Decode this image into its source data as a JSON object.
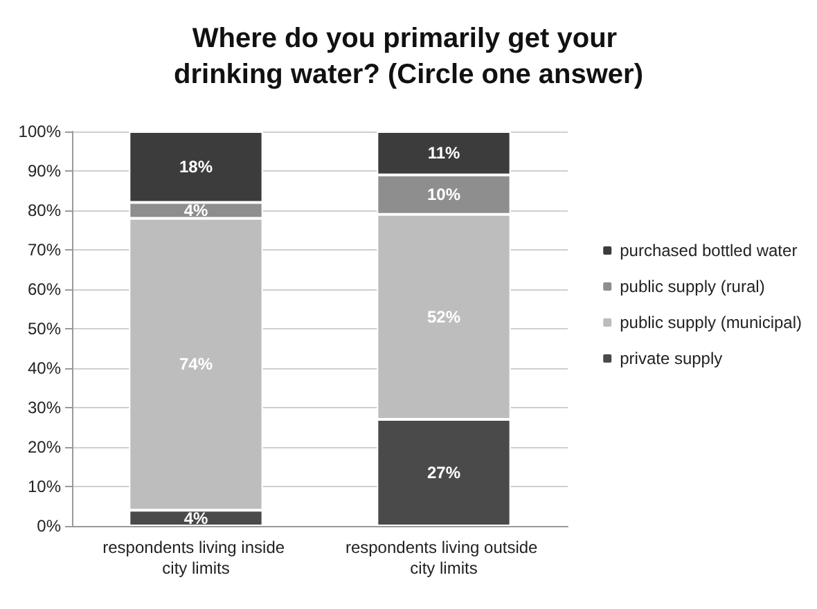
{
  "chart_data": {
    "type": "bar",
    "title": "Where do you primarily get your drinking water? (Circle one answer)",
    "categories": [
      "respondents living inside city limits",
      "respondents living outside city limits"
    ],
    "stacked": true,
    "series": [
      {
        "name": "private supply",
        "color": "#4a4a4a",
        "values": [
          4,
          27
        ],
        "value_labels": [
          "4%",
          "27%"
        ]
      },
      {
        "name": "public supply (municipal)",
        "color": "#bdbdbd",
        "values": [
          74,
          52
        ],
        "value_labels": [
          "74%",
          "52%"
        ]
      },
      {
        "name": "public supply (rural)",
        "color": "#8e8e8e",
        "values": [
          4,
          10
        ],
        "value_labels": [
          "4%",
          "10%"
        ]
      },
      {
        "name": "purchased bottled water",
        "color": "#3c3c3c",
        "values": [
          18,
          11
        ],
        "value_labels": [
          "18%",
          "11%"
        ]
      }
    ],
    "ylim": [
      0,
      100
    ],
    "yticks": [
      {
        "value": 0,
        "label": "0%"
      },
      {
        "value": 10,
        "label": "10%"
      },
      {
        "value": 20,
        "label": "20%"
      },
      {
        "value": 30,
        "label": "30%"
      },
      {
        "value": 40,
        "label": "40%"
      },
      {
        "value": 50,
        "label": "50%"
      },
      {
        "value": 60,
        "label": "60%"
      },
      {
        "value": 70,
        "label": "70%"
      },
      {
        "value": 80,
        "label": "80%"
      },
      {
        "value": 90,
        "label": "90%"
      },
      {
        "value": 100,
        "label": "100%"
      }
    ],
    "grid": "y",
    "legend": "right"
  }
}
